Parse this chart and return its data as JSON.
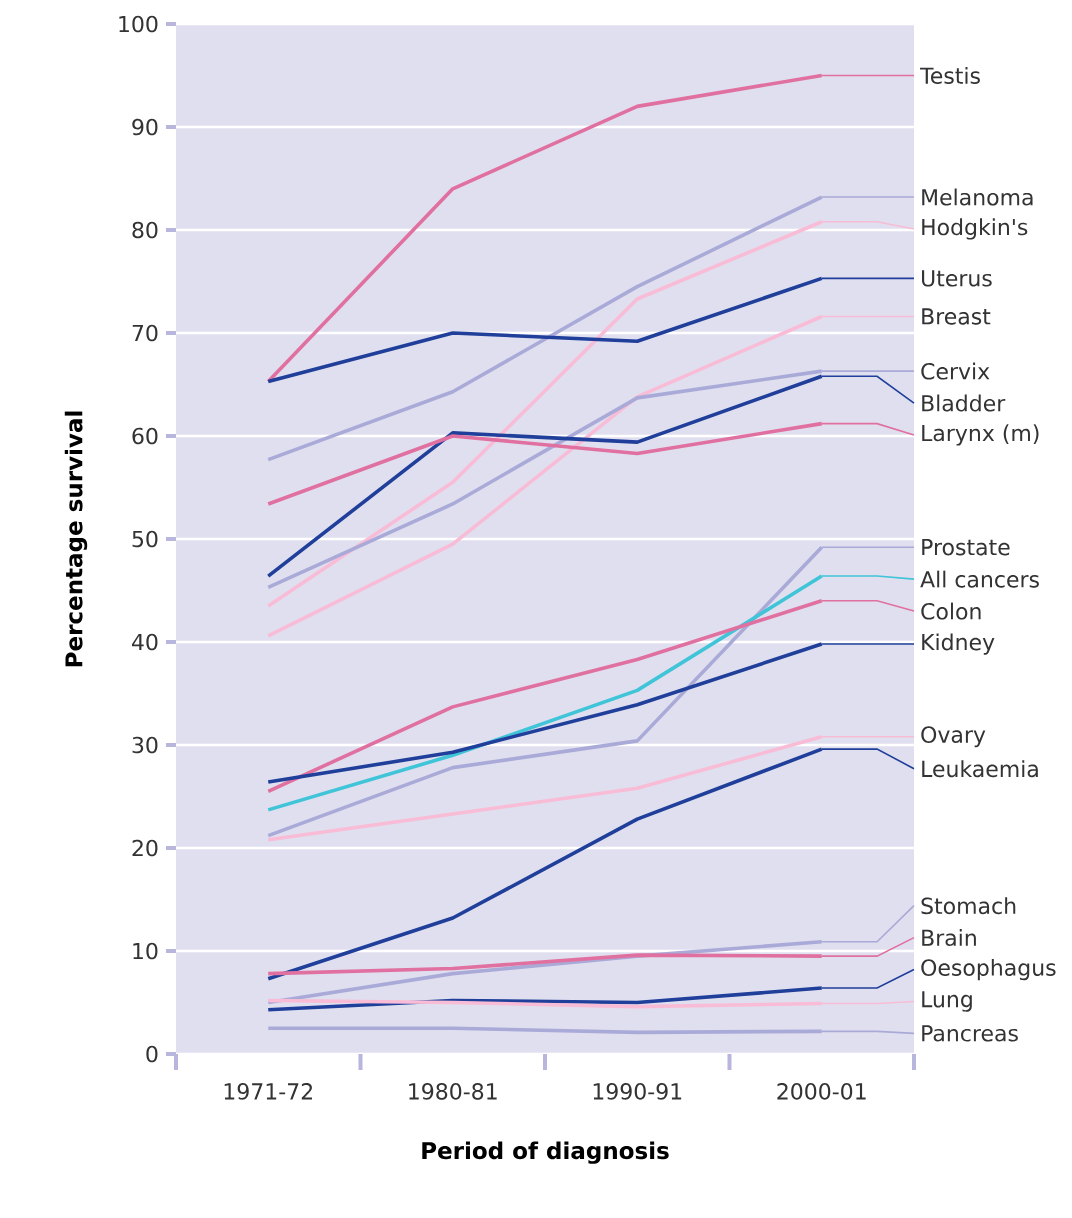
{
  "chart_data": {
    "type": "line",
    "xlabel": "Period of diagnosis",
    "ylabel": "Percentage survival",
    "categories": [
      "1971-72",
      "1980-81",
      "1990-91",
      "2000-01"
    ],
    "ylim": [
      0,
      100
    ],
    "yticks": [
      0,
      10,
      20,
      30,
      40,
      50,
      60,
      70,
      80,
      90,
      100
    ],
    "grid": "y",
    "legend": "right",
    "marker": "none",
    "line_style": "solid",
    "series": [
      {
        "name": "Testis",
        "color": "#e070a0",
        "values": [
          65.3,
          84,
          92,
          95
        ]
      },
      {
        "name": "Melanoma",
        "color": "#aaaad8",
        "values": [
          57.7,
          64.3,
          74.5,
          83.2
        ]
      },
      {
        "name": "Hodgkin's",
        "color": "#f8bcd6",
        "values": [
          43.5,
          55.5,
          73.3,
          80.8
        ]
      },
      {
        "name": "Uterus",
        "color": "#1f3f9a",
        "values": [
          65.3,
          70,
          69.2,
          75.3
        ]
      },
      {
        "name": "Breast",
        "color": "#f8bcd6",
        "values": [
          40.6,
          49.5,
          63.8,
          71.6
        ]
      },
      {
        "name": "Cervix",
        "color": "#aaaad8",
        "values": [
          45.3,
          53.4,
          63.7,
          66.3
        ]
      },
      {
        "name": "Bladder",
        "color": "#1f3f9a",
        "values": [
          46.4,
          60.3,
          59.4,
          65.8
        ]
      },
      {
        "name": "Larynx (m)",
        "color": "#e070a0",
        "values": [
          53.4,
          60,
          58.3,
          61.2
        ]
      },
      {
        "name": "Prostate",
        "color": "#aaaad8",
        "values": [
          21.2,
          27.8,
          30.4,
          49.2
        ]
      },
      {
        "name": "All cancers",
        "color": "#40c4d8",
        "values": [
          23.7,
          29,
          35.3,
          46.4
        ]
      },
      {
        "name": "Colon",
        "color": "#e070a0",
        "values": [
          25.5,
          33.7,
          38.3,
          44
        ]
      },
      {
        "name": "Kidney",
        "color": "#1f3f9a",
        "values": [
          26.4,
          29.3,
          33.9,
          39.8
        ]
      },
      {
        "name": "Ovary",
        "color": "#f8bcd6",
        "values": [
          20.8,
          23.3,
          25.8,
          30.8
        ]
      },
      {
        "name": "Leukaemia",
        "color": "#1f3f9a",
        "values": [
          7.3,
          13.2,
          22.8,
          29.6
        ]
      },
      {
        "name": "Stomach",
        "color": "#aaaad8",
        "values": [
          5,
          7.8,
          9.5,
          10.9
        ]
      },
      {
        "name": "Brain",
        "color": "#e070a0",
        "values": [
          7.8,
          8.3,
          9.6,
          9.5
        ]
      },
      {
        "name": "Oesophagus",
        "color": "#1f3f9a",
        "values": [
          4.3,
          5.2,
          5,
          6.4
        ]
      },
      {
        "name": "Lung",
        "color": "#f8bcd6",
        "values": [
          5.2,
          5,
          4.6,
          4.9
        ]
      },
      {
        "name": "Pancreas",
        "color": "#aaaad8",
        "values": [
          2.5,
          2.5,
          2.1,
          2.2
        ]
      }
    ]
  }
}
